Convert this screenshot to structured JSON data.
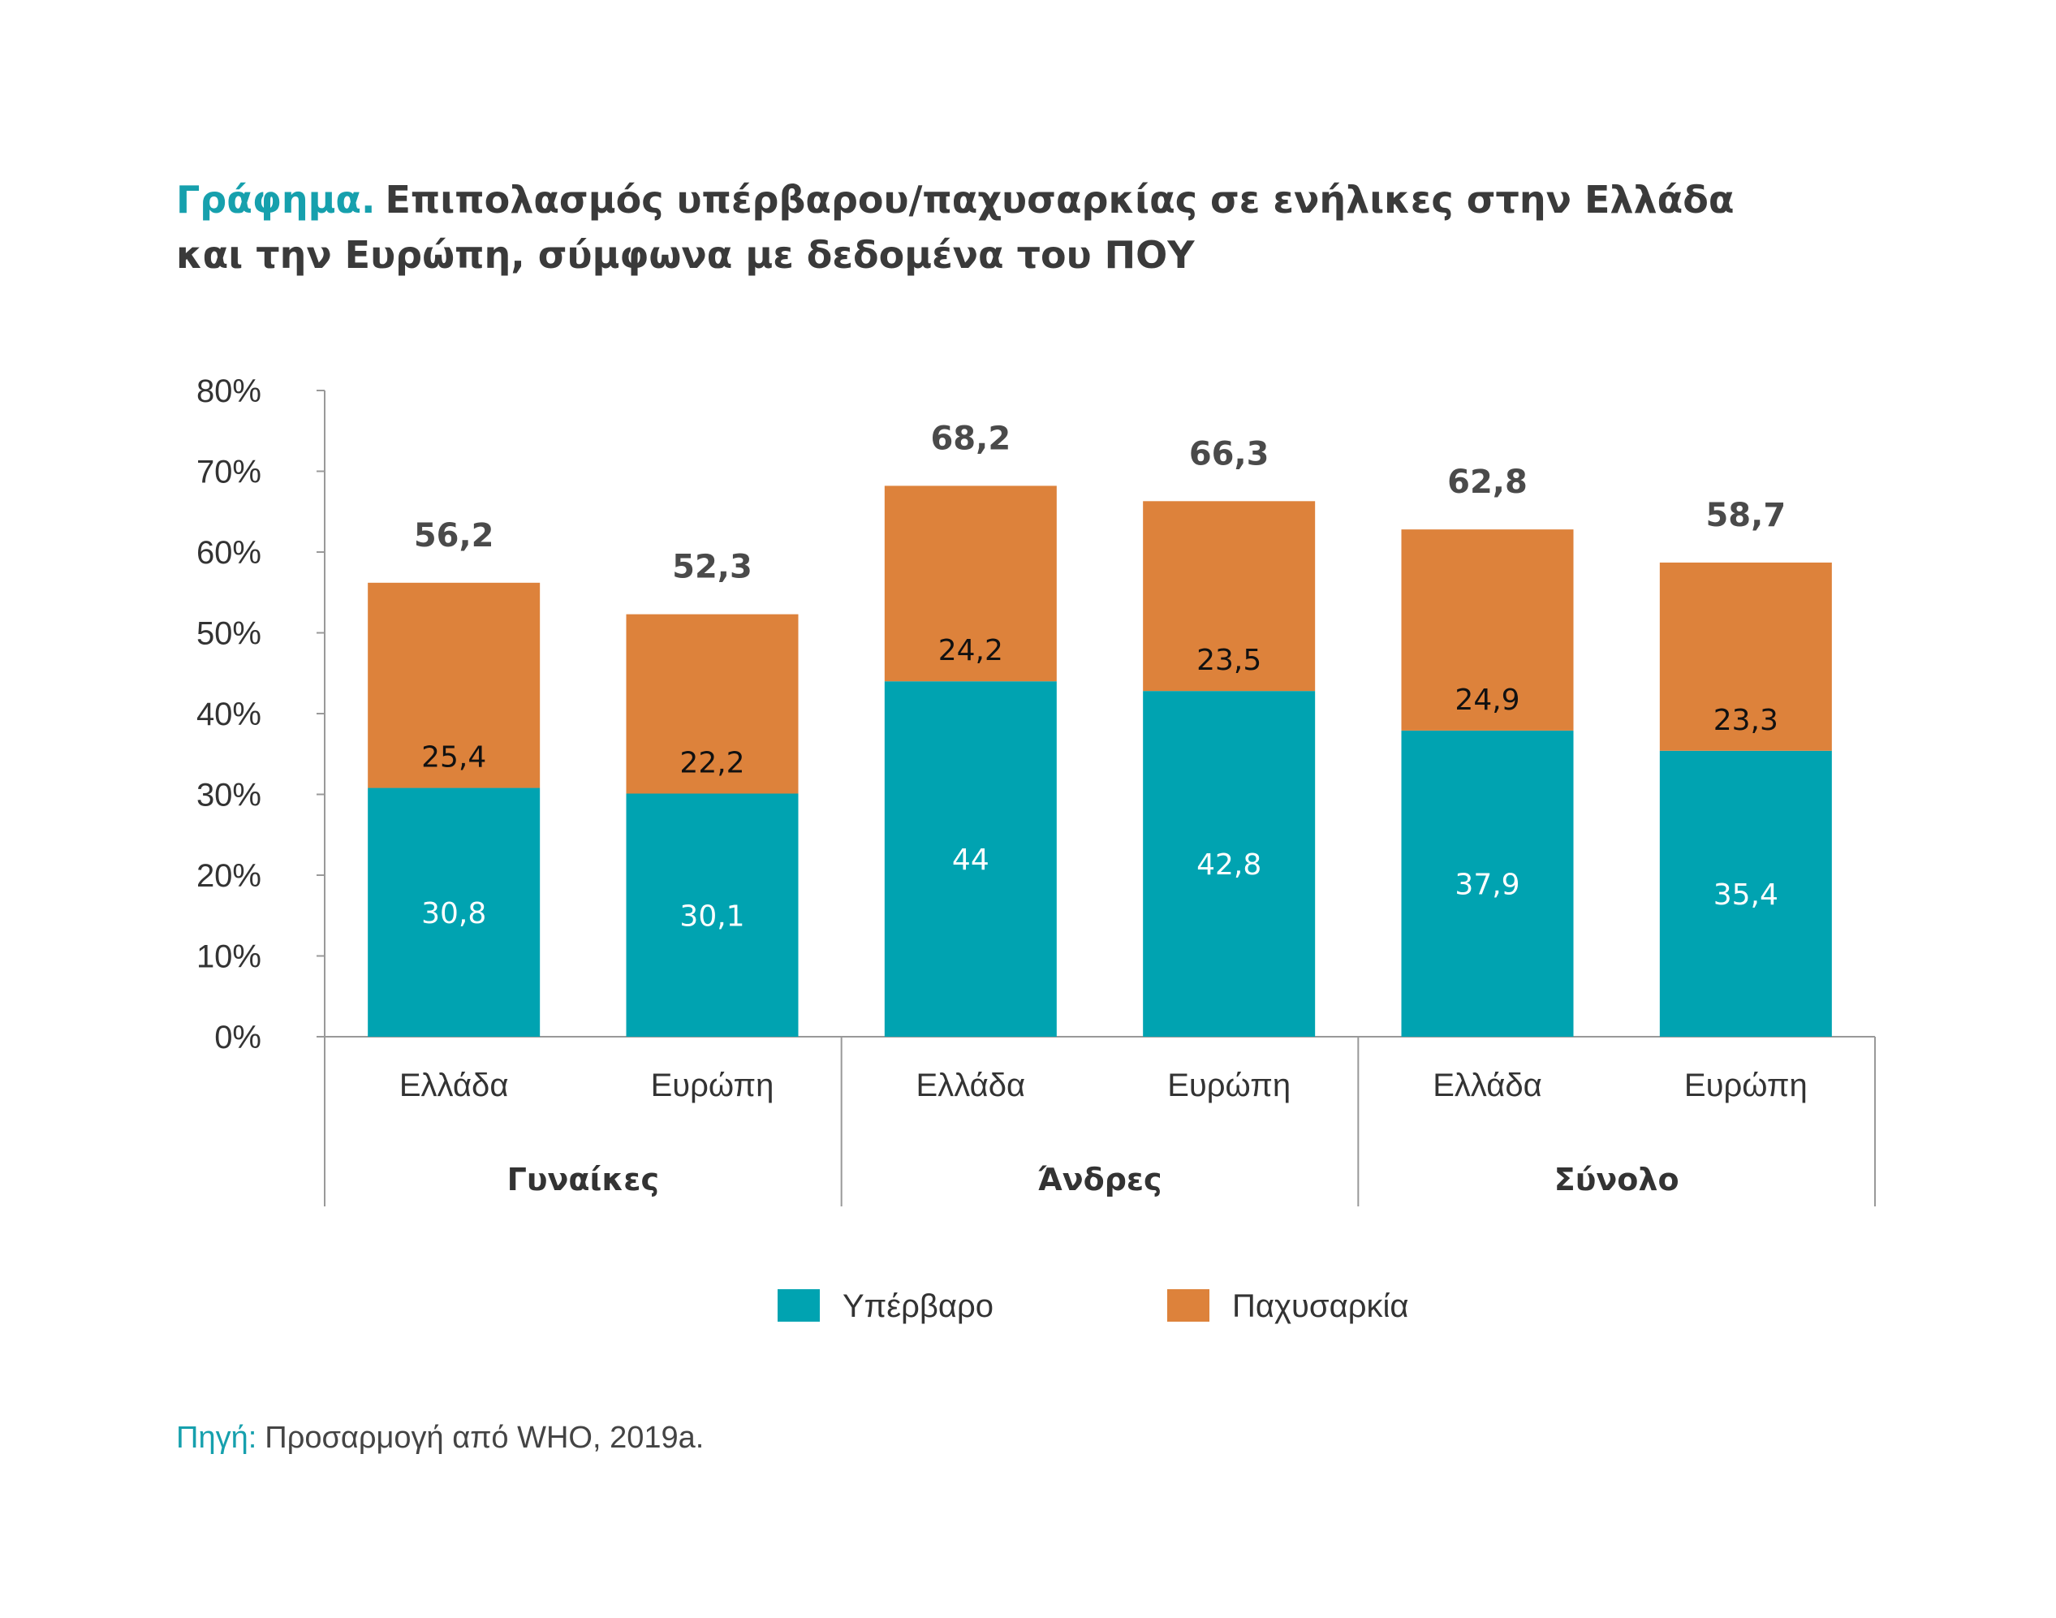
{
  "title": {
    "prefix": "Γράφημα.",
    "line1": "Επιπολασμός υπέρβαρου/παχυσαρκίας σε ενήλικες στην Ελλάδα",
    "line2": "και την Ευρώπη, σύμφωνα με δεδομένα του ΠΟΥ"
  },
  "source": {
    "prefix": "Πηγή:",
    "text": "Προσαρμογή από WHO, 2019a."
  },
  "colors": {
    "overweight": "#00a3b1",
    "obesity": "#dd823b",
    "axis": "#999999"
  },
  "chart_data": {
    "type": "bar",
    "stacked": true,
    "ylim": [
      0,
      80
    ],
    "yticks": [
      "0%",
      "10%",
      "20%",
      "30%",
      "40%",
      "50%",
      "60%",
      "70%",
      "80%"
    ],
    "groups": [
      {
        "label": "Γυναίκες",
        "categories": [
          "Ελλάδα",
          "Ευρώπη"
        ]
      },
      {
        "label": "Άνδρες",
        "categories": [
          "Ελλάδα",
          "Ευρώπη"
        ]
      },
      {
        "label": "Σύνολο",
        "categories": [
          "Ελλάδα",
          "Ευρώπη"
        ]
      }
    ],
    "categories": [
      "Ελλάδα",
      "Ευρώπη",
      "Ελλάδα",
      "Ευρώπη",
      "Ελλάδα",
      "Ευρώπη"
    ],
    "series": [
      {
        "name": "Υπέρβαρο",
        "values": [
          30.8,
          30.1,
          44,
          42.8,
          37.9,
          35.4
        ],
        "labels": [
          "30,8",
          "30,1",
          "44",
          "42,8",
          "37,9",
          "35,4"
        ]
      },
      {
        "name": "Παχυσαρκία",
        "values": [
          25.4,
          22.2,
          24.2,
          23.5,
          24.9,
          23.3
        ],
        "labels": [
          "25,4",
          "22,2",
          "24,2",
          "23,5",
          "24,9",
          "23,3"
        ]
      }
    ],
    "totals": [
      56.2,
      52.3,
      68.2,
      66.3,
      62.8,
      58.7
    ],
    "total_labels": [
      "56,2",
      "52,3",
      "68,2",
      "66,3",
      "62,8",
      "58,7"
    ],
    "legend_position": "bottom",
    "grid": false
  }
}
